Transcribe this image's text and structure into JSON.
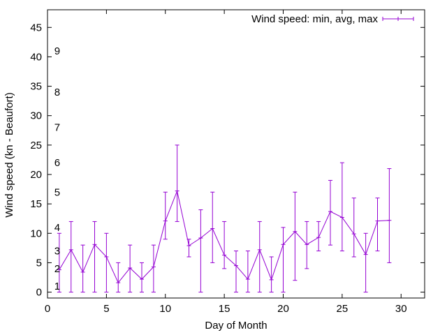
{
  "chart_data": {
    "type": "line",
    "xlabel": "Day of Month",
    "ylabel": "Wind speed (kn - Beaufort)",
    "xlim": [
      0,
      32
    ],
    "ylim": [
      -1,
      48
    ],
    "xticks": [
      0,
      5,
      10,
      15,
      20,
      25,
      30
    ],
    "yticks": [
      0,
      5,
      10,
      15,
      20,
      25,
      30,
      35,
      40,
      45
    ],
    "grid": false,
    "legend_position": "top-right",
    "series": [
      {
        "name": "Wind speed: min, avg, max",
        "color": "#9400d3",
        "points": [
          {
            "x": 1,
            "y": 3.8,
            "min": 0,
            "max": 10
          },
          {
            "x": 2,
            "y": 7.2,
            "min": 0,
            "max": 12
          },
          {
            "x": 3,
            "y": 3.4,
            "min": 0,
            "max": 8
          },
          {
            "x": 4,
            "y": 8.1,
            "min": 0,
            "max": 12
          },
          {
            "x": 5,
            "y": 6.0,
            "min": 0,
            "max": 10
          },
          {
            "x": 6,
            "y": 1.6,
            "min": 0,
            "max": 5
          },
          {
            "x": 7,
            "y": 4.1,
            "min": 0,
            "max": 8
          },
          {
            "x": 8,
            "y": 2.2,
            "min": 0,
            "max": 5
          },
          {
            "x": 9,
            "y": 4.3,
            "min": 0,
            "max": 8
          },
          {
            "x": 10,
            "y": 12.1,
            "min": 9,
            "max": 17
          },
          {
            "x": 11,
            "y": 17.2,
            "min": 12,
            "max": 25
          },
          {
            "x": 12,
            "y": 7.9,
            "min": 6,
            "max": 9
          },
          {
            "x": 13,
            "y": 9.2,
            "min": 0,
            "max": 14
          },
          {
            "x": 14,
            "y": 10.8,
            "min": 5,
            "max": 17
          },
          {
            "x": 15,
            "y": 6.3,
            "min": 4,
            "max": 12
          },
          {
            "x": 16,
            "y": 4.5,
            "min": 0,
            "max": 7
          },
          {
            "x": 17,
            "y": 2.2,
            "min": 0,
            "max": 7
          },
          {
            "x": 18,
            "y": 7.2,
            "min": 0,
            "max": 12
          },
          {
            "x": 19,
            "y": 2.1,
            "min": 0,
            "max": 6
          },
          {
            "x": 20,
            "y": 8.1,
            "min": 0,
            "max": 11
          },
          {
            "x": 21,
            "y": 10.3,
            "min": 2,
            "max": 17
          },
          {
            "x": 22,
            "y": 8.1,
            "min": 4,
            "max": 12
          },
          {
            "x": 23,
            "y": 9.3,
            "min": 7,
            "max": 12
          },
          {
            "x": 24,
            "y": 13.7,
            "min": 8,
            "max": 19
          },
          {
            "x": 25,
            "y": 12.7,
            "min": 7,
            "max": 22
          },
          {
            "x": 26,
            "y": 9.9,
            "min": 6,
            "max": 16
          },
          {
            "x": 27,
            "y": 6.4,
            "min": 0,
            "max": 10
          },
          {
            "x": 28,
            "y": 12.1,
            "min": 7,
            "max": 16
          },
          {
            "x": 29,
            "y": 12.2,
            "min": 5,
            "max": 21
          }
        ]
      }
    ],
    "annotations": [
      {
        "text": "1",
        "x": 1,
        "y": 1
      },
      {
        "text": "2",
        "x": 1,
        "y": 4
      },
      {
        "text": "3",
        "x": 1,
        "y": 7
      },
      {
        "text": "4",
        "x": 1,
        "y": 11
      },
      {
        "text": "5",
        "x": 1,
        "y": 17
      },
      {
        "text": "6",
        "x": 1,
        "y": 22
      },
      {
        "text": "7",
        "x": 1,
        "y": 28
      },
      {
        "text": "8",
        "x": 1,
        "y": 34
      },
      {
        "text": "9",
        "x": 1,
        "y": 41
      }
    ]
  }
}
